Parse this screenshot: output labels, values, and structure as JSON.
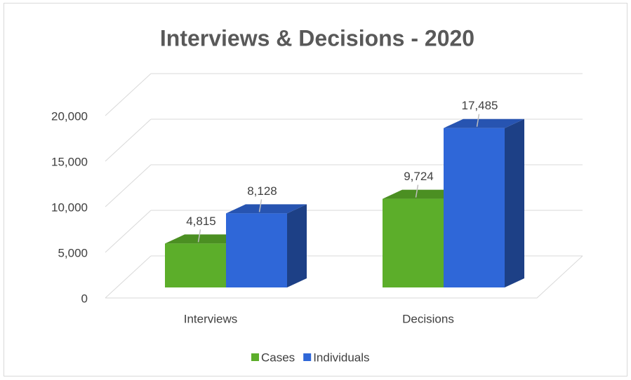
{
  "chart_data": {
    "type": "bar3d",
    "title": "Interviews & Decisions - 2020",
    "categories": [
      "Interviews",
      "Decisions"
    ],
    "series": [
      {
        "name": "Cases",
        "color": "#5cae2a",
        "values": [
          4815,
          9724
        ],
        "value_labels": [
          "4,815",
          "9,724"
        ]
      },
      {
        "name": "Individuals",
        "color": "#2f67d8",
        "values": [
          8128,
          17485
        ],
        "value_labels": [
          "8,128",
          "17,485"
        ]
      }
    ],
    "ylim": [
      0,
      20000
    ],
    "yticks": [
      0,
      {
        "value": 5000,
        "label": "5,000"
      },
      {
        "value": 10000,
        "label": "10,000"
      },
      {
        "value": 15000,
        "label": "15,000"
      },
      {
        "value": 20000,
        "label": "20,000"
      }
    ],
    "grid": true,
    "legend": "bottom"
  }
}
